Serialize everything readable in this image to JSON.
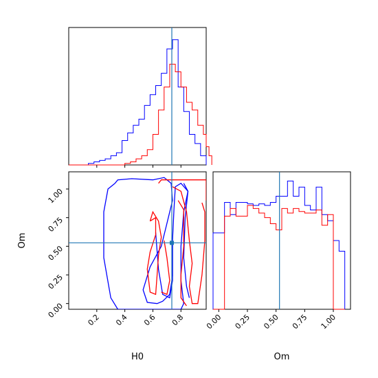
{
  "chart_data": {
    "type": "corner",
    "parameters": [
      "H0",
      "Om"
    ],
    "colors": {
      "sample_a": "#0000ff",
      "sample_b": "#ff0000",
      "truth": "#1f77b4"
    },
    "truth": {
      "H0": 0.735,
      "Om": 0.53
    },
    "panels": [
      {
        "id": "hist-H0",
        "type": "histogram",
        "xlim": [
          0.0,
          0.98
        ],
        "bin_edges": [
          0.14,
          0.18,
          0.22,
          0.26,
          0.3,
          0.34,
          0.38,
          0.42,
          0.46,
          0.5,
          0.54,
          0.58,
          0.62,
          0.66,
          0.7,
          0.74,
          0.78,
          0.82,
          0.86,
          0.9,
          0.94,
          0.98
        ],
        "series": [
          {
            "key": "sample_a",
            "counts": [
              0.01,
              0.02,
              0.03,
              0.04,
              0.06,
              0.08,
              0.16,
              0.21,
              0.26,
              0.3,
              0.39,
              0.46,
              0.52,
              0.6,
              0.76,
              0.82,
              0.51,
              0.35,
              0.2,
              0.14,
              0.06
            ]
          },
          {
            "key": "sample_b",
            "counts": [
              0,
              0,
              0,
              0,
              0,
              0,
              0,
              0,
              0,
              0,
              0.01,
              0.02,
              0.04,
              0.06,
              0.1,
              0.2,
              0.36,
              0.51,
              0.66,
              0.61,
              0.51,
              0.41,
              0.36,
              0.26,
              0.2,
              0.12,
              0.06
            ]
          }
        ],
        "series_b_edges": [
          0.0,
          0.04,
          0.08,
          0.12,
          0.16,
          0.2,
          0.24,
          0.28,
          0.32,
          0.36,
          0.4,
          0.44,
          0.48,
          0.52,
          0.56,
          0.6,
          0.64,
          0.68,
          0.72,
          0.76,
          0.8,
          0.84,
          0.88,
          0.92,
          0.96,
          0.98,
          1.0,
          1.02
        ]
      },
      {
        "id": "hist-Om",
        "type": "histogram",
        "xlim": [
          -0.05,
          1.15
        ],
        "xticks": [
          "0.00",
          "0.25",
          "0.50",
          "0.75",
          "1.00"
        ],
        "xtick_values": [
          0,
          0.25,
          0.5,
          0.75,
          1.0
        ],
        "xlabel": "Om",
        "bin_edges": [
          -0.05,
          0.0,
          0.05,
          0.1,
          0.15,
          0.2,
          0.25,
          0.3,
          0.35,
          0.4,
          0.45,
          0.5,
          0.55,
          0.6,
          0.65,
          0.7,
          0.75,
          0.8,
          0.85,
          0.9,
          0.95,
          1.0,
          1.05,
          1.1
        ],
        "series": [
          {
            "key": "sample_a",
            "counts": [
              0.5,
              0.5,
              0.7,
              0.62,
              0.7,
              0.7,
              0.69,
              0.68,
              0.69,
              0.68,
              0.7,
              0.74,
              0.74,
              0.84,
              0.74,
              0.8,
              0.68,
              0.65,
              0.8,
              0.62,
              0.58,
              0.45,
              0.38
            ]
          },
          {
            "key": "sample_b",
            "counts": [
              0,
              0,
              0.61,
              0.66,
              0.61,
              0.61,
              0.68,
              0.66,
              0.63,
              0.6,
              0.56,
              0.52,
              0.66,
              0.63,
              0.66,
              0.64,
              0.63,
              0.63,
              0.65,
              0.55,
              0.62,
              0.0,
              0.0
            ]
          }
        ]
      },
      {
        "id": "contour-H0-Om",
        "type": "contour",
        "xlim": [
          0.0,
          0.98
        ],
        "ylim": [
          -0.05,
          1.15
        ],
        "xlabel": "H0",
        "ylabel": "Om",
        "xticks": [
          "0.2",
          "0.4",
          "0.6",
          "0.8"
        ],
        "xtick_values": [
          0.2,
          0.4,
          0.6,
          0.8
        ],
        "yticks": [
          "0.00",
          "0.25",
          "0.50",
          "0.75",
          "1.00"
        ],
        "ytick_values": [
          0,
          0.25,
          0.5,
          0.75,
          1.0
        ],
        "contours": [
          {
            "key": "sample_a",
            "points": [
              [
                0.33,
                1.05
              ],
              [
                0.35,
                1.08
              ],
              [
                0.45,
                1.09
              ],
              [
                0.6,
                1.08
              ],
              [
                0.68,
                1.1
              ],
              [
                0.73,
                1.05
              ],
              [
                0.74,
                0.9
              ],
              [
                0.7,
                0.7
              ],
              [
                0.66,
                0.5
              ],
              [
                0.58,
                0.32
              ],
              [
                0.53,
                0.12
              ],
              [
                0.56,
                0.01
              ],
              [
                0.63,
                0.0
              ],
              [
                0.67,
                0.02
              ],
              [
                0.72,
                0.08
              ],
              [
                0.74,
                0.24
              ],
              [
                0.74,
                0.55
              ],
              [
                0.75,
                0.82
              ],
              [
                0.76,
                1.02
              ],
              [
                0.8,
                1.05
              ],
              [
                0.85,
                0.98
              ],
              [
                0.82,
                0.8
              ],
              [
                0.8,
                0.5
              ],
              [
                0.8,
                0.2
              ],
              [
                0.82,
                0.0
              ],
              [
                0.8,
                -0.05
              ],
              [
                0.35,
                -0.05
              ],
              [
                0.3,
                0.05
              ],
              [
                0.25,
                0.4
              ],
              [
                0.25,
                0.8
              ],
              [
                0.28,
                1.0
              ],
              [
                0.33,
                1.05
              ]
            ]
          },
          {
            "key": "sample_a",
            "points": [
              [
                0.62,
                0.62
              ],
              [
                0.64,
                0.3
              ],
              [
                0.67,
                0.08
              ],
              [
                0.72,
                0.05
              ],
              [
                0.74,
                0.2
              ],
              [
                0.74,
                0.52
              ]
            ]
          },
          {
            "key": "sample_a",
            "points": [
              [
                0.82,
                1.05
              ],
              [
                0.85,
                0.98
              ],
              [
                0.83,
                0.75
              ],
              [
                0.82,
                0.4
              ],
              [
                0.84,
                0.15
              ],
              [
                0.86,
                0.05
              ]
            ]
          },
          {
            "key": "sample_b",
            "points": [
              [
                0.58,
                0.72
              ],
              [
                0.62,
                0.75
              ],
              [
                0.62,
                0.6
              ],
              [
                0.58,
                0.45
              ],
              [
                0.56,
                0.3
              ],
              [
                0.58,
                0.1
              ],
              [
                0.62,
                0.08
              ],
              [
                0.63,
                0.25
              ],
              [
                0.64,
                0.42
              ],
              [
                0.66,
                0.58
              ],
              [
                0.64,
                0.72
              ],
              [
                0.6,
                0.8
              ],
              [
                0.58,
                0.72
              ]
            ]
          },
          {
            "key": "sample_b",
            "points": [
              [
                0.64,
                1.05
              ],
              [
                0.66,
                1.08
              ],
              [
                0.98,
                1.08
              ],
              [
                0.98,
                0.9
              ]
            ]
          },
          {
            "key": "sample_b",
            "points": [
              [
                0.74,
                1.02
              ],
              [
                0.8,
                0.98
              ],
              [
                0.84,
                0.8
              ],
              [
                0.86,
                0.55
              ],
              [
                0.88,
                0.35
              ],
              [
                0.86,
                0.15
              ],
              [
                0.88,
                0.0
              ],
              [
                0.92,
                0.0
              ],
              [
                0.95,
                0.25
              ],
              [
                0.97,
                0.55
              ],
              [
                0.97,
                0.8
              ],
              [
                0.95,
                0.88
              ]
            ]
          },
          {
            "key": "sample_b",
            "points": [
              [
                0.78,
                0.9
              ],
              [
                0.82,
                0.82
              ],
              [
                0.82,
                0.5
              ],
              [
                0.8,
                0.25
              ],
              [
                0.8,
                0.05
              ],
              [
                0.84,
                -0.02
              ]
            ]
          },
          {
            "key": "sample_b",
            "points": [
              [
                0.66,
                0.1
              ],
              [
                0.7,
                0.08
              ],
              [
                0.72,
                0.2
              ],
              [
                0.7,
                0.4
              ],
              [
                0.68,
                0.55
              ]
            ]
          }
        ]
      }
    ]
  }
}
